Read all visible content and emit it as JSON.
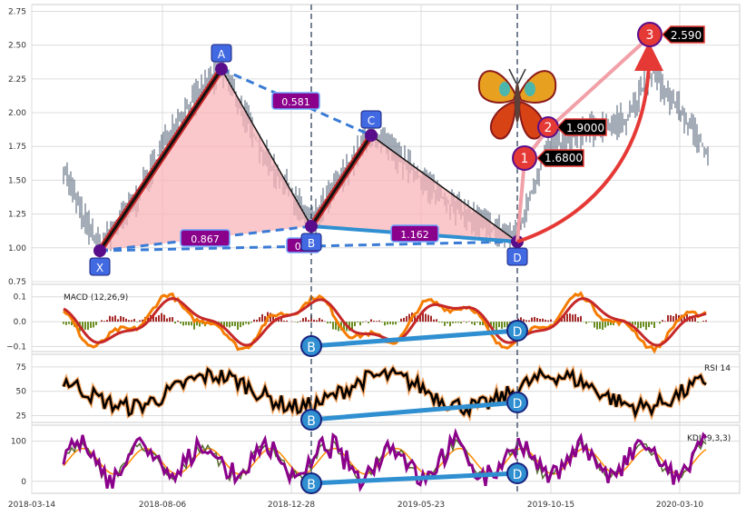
{
  "chart_data": {
    "type": "line",
    "x_dates": [
      "2018-03-14",
      "2018-08-06",
      "2018-12-28",
      "2019-05-23",
      "2019-10-15",
      "2020-03-10"
    ],
    "panels": [
      {
        "name": "price",
        "title": "",
        "ylim": [
          0.75,
          2.8
        ],
        "yticks": [
          "0.75",
          "1.00",
          "1.25",
          "1.50",
          "1.75",
          "2.00",
          "2.25",
          "2.50",
          "2.75"
        ],
        "ytick_values": [
          0.75,
          1.0,
          1.25,
          1.5,
          1.75,
          2.0,
          2.25,
          2.5,
          2.75
        ]
      },
      {
        "name": "macd",
        "title": "MACD (12,26,9)",
        "ylim": [
          -0.12,
          0.15
        ],
        "yticks": [
          "0.1",
          "0.0",
          "−0.1"
        ],
        "ytick_values": [
          0.1,
          0.0,
          -0.1
        ]
      },
      {
        "name": "rsi",
        "title": "RSI 14",
        "ylim": [
          18,
          88
        ],
        "yticks": [
          "75",
          "50",
          "25"
        ],
        "ytick_values": [
          75,
          50,
          25
        ]
      },
      {
        "name": "kdj",
        "title": "KDJ (9,3,3)",
        "ylim": [
          -30,
          140
        ],
        "yticks": [
          "100",
          "0"
        ],
        "ytick_values": [
          100,
          0
        ]
      }
    ],
    "pattern": {
      "points": [
        {
          "label": "X",
          "date": "2018-05-12",
          "price": 1.0
        },
        {
          "label": "A",
          "date": "2018-09-22",
          "price": 2.34
        },
        {
          "label": "B",
          "date": "2019-01-01",
          "price": 1.18
        },
        {
          "label": "C",
          "date": "2019-03-30",
          "price": 1.86
        },
        {
          "label": "D",
          "date": "2019-08-31",
          "price": 1.07
        }
      ],
      "ratios": [
        {
          "label": "0.581",
          "between": "A-C"
        },
        {
          "label": "0.867",
          "between": "X-B"
        },
        {
          "label": "0.",
          "between": "X-D"
        },
        {
          "label": "1.162",
          "between": "B-D"
        }
      ]
    },
    "targets": [
      {
        "label": "1",
        "value": "1.6800"
      },
      {
        "label": "2",
        "value": "1.9000"
      },
      {
        "label": "3",
        "value": "2.590"
      }
    ],
    "divergence_labels": [
      "B",
      "D"
    ],
    "colors": {
      "pattern_fill": "#f8b4b8",
      "pattern_edge": "#111111",
      "dashed": "#3a7bd5",
      "point_marker": "#5a0d8a",
      "label_box": "#4169e1",
      "ratio_box": "#8b008b",
      "target_circle": "#e53935",
      "divergence": "#2f8fd0",
      "macd_line": "#f57c00",
      "signal_line": "#c62828",
      "rsi_line": "#000000",
      "kdj_line": "#8b008b",
      "price_bars": "#4a5a70"
    },
    "grid": true
  }
}
